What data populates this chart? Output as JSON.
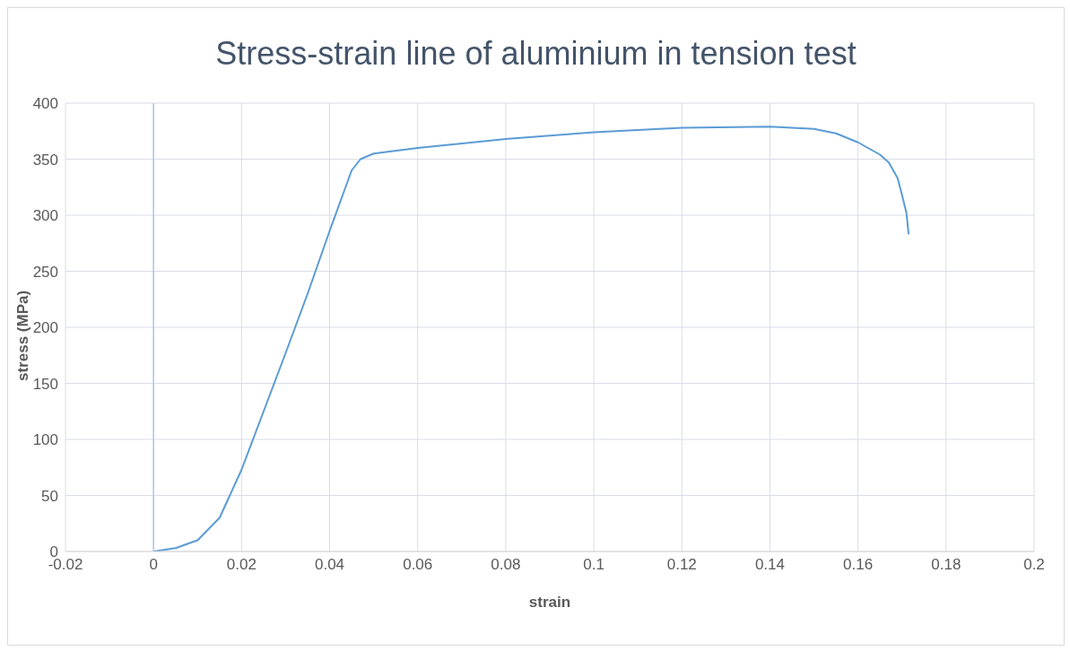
{
  "chart_data": {
    "type": "line",
    "title": "Stress-strain line of aluminium in tension test",
    "xlabel": "strain",
    "ylabel": "stress (MPa)",
    "x": [
      0,
      0.005,
      0.01,
      0.015,
      0.02,
      0.025,
      0.03,
      0.035,
      0.04,
      0.045,
      0.047,
      0.05,
      0.06,
      0.08,
      0.1,
      0.12,
      0.14,
      0.15,
      0.155,
      0.16,
      0.165,
      0.167,
      0.169,
      0.17,
      0.171,
      0.1715
    ],
    "series": [
      {
        "color": "#5b9bd5",
        "values": [
          0,
          3,
          10,
          30,
          73,
          125,
          177,
          230,
          286,
          340,
          350,
          355,
          360,
          368,
          374,
          378,
          379,
          377,
          373,
          365,
          354,
          347,
          333,
          318,
          302,
          283
        ]
      }
    ],
    "xlim": [
      -0.02,
      0.2
    ],
    "xticks": [
      -0.02,
      0,
      0.02,
      0.04,
      0.06,
      0.08,
      0.1,
      0.12,
      0.14,
      0.16,
      0.18,
      0.2
    ],
    "ylim": [
      0,
      400
    ],
    "yticks": [
      0,
      50,
      100,
      150,
      200,
      250,
      300,
      350,
      400
    ],
    "ref_lines": [
      {
        "axis": "x",
        "value": 0,
        "color": "#b4c7e7"
      }
    ],
    "grid": true,
    "legend": false,
    "marker": "none",
    "line_style": "solid"
  }
}
